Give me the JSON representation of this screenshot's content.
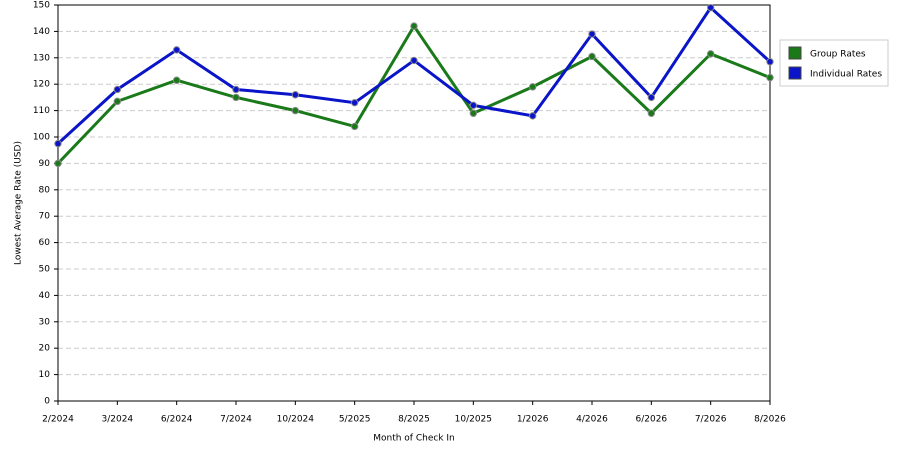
{
  "chart_data": {
    "type": "line",
    "x_label": "Month of Check In",
    "y_label": "Lowest Average Rate (USD)",
    "categories": [
      "2/2024",
      "3/2024",
      "6/2024",
      "7/2024",
      "10/2024",
      "5/2025",
      "8/2025",
      "10/2025",
      "1/2026",
      "4/2026",
      "6/2026",
      "7/2026",
      "8/2026"
    ],
    "series": [
      {
        "name": "Group Rates",
        "color": "#1a7a1a",
        "values": [
          90,
          113.5,
          121.5,
          115,
          110,
          104,
          142,
          109,
          119,
          130.5,
          109,
          131.5,
          122.5
        ]
      },
      {
        "name": "Individual Rates",
        "color": "#0a14c8",
        "values": [
          97.5,
          118,
          133,
          118,
          116,
          113,
          129,
          112,
          108,
          139,
          115,
          149,
          128.5
        ]
      }
    ],
    "ylim": [
      0,
      150
    ],
    "yticks": [
      0,
      10,
      20,
      30,
      40,
      50,
      60,
      70,
      80,
      90,
      100,
      110,
      120,
      130,
      140,
      150
    ],
    "grid": true,
    "legend": "right"
  }
}
